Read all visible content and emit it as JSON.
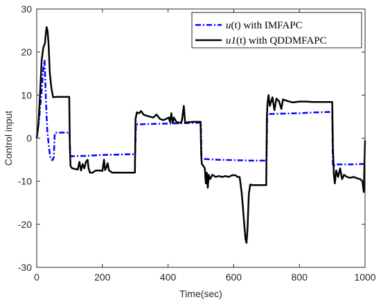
{
  "chart_data": {
    "type": "line",
    "title": "",
    "xlabel": "Time(sec)",
    "ylabel": "Control input",
    "xlim": [
      0,
      1000
    ],
    "ylim": [
      -30,
      30
    ],
    "xticks": [
      0,
      200,
      400,
      600,
      800,
      1000
    ],
    "yticks": [
      -30,
      -20,
      -10,
      0,
      10,
      20,
      30
    ],
    "grid": false,
    "legend_placement": "top-right",
    "series": [
      {
        "name": "u(t) with IMFAPC",
        "legend": {
          "fn": "u",
          "arg": "(t)",
          "suffix": " with IMFAPC"
        },
        "color": "#0000ff",
        "style": "dash-dot",
        "points": [
          [
            0,
            0
          ],
          [
            8,
            5
          ],
          [
            15,
            11
          ],
          [
            20,
            16
          ],
          [
            24,
            18
          ],
          [
            28,
            9
          ],
          [
            32,
            2
          ],
          [
            37,
            -2
          ],
          [
            42,
            -4.8
          ],
          [
            48,
            -5.1
          ],
          [
            52,
            -4.5
          ],
          [
            55,
            1.2
          ],
          [
            60,
            1.3
          ],
          [
            80,
            1.3
          ],
          [
            99,
            1.3
          ],
          [
            100,
            1.3
          ],
          [
            102,
            -4.2
          ],
          [
            150,
            -4.1
          ],
          [
            200,
            -3.9
          ],
          [
            250,
            -3.8
          ],
          [
            298,
            -3.7
          ],
          [
            300,
            -3.7
          ],
          [
            302,
            3.2
          ],
          [
            350,
            3.3
          ],
          [
            400,
            3.4
          ],
          [
            450,
            3.5
          ],
          [
            498,
            3.6
          ],
          [
            500,
            3.6
          ],
          [
            502,
            -4.8
          ],
          [
            550,
            -5.0
          ],
          [
            600,
            -5.1
          ],
          [
            650,
            -5.2
          ],
          [
            698,
            -5.2
          ],
          [
            700,
            -5.2
          ],
          [
            702,
            5.6
          ],
          [
            750,
            5.7
          ],
          [
            800,
            5.8
          ],
          [
            850,
            6.0
          ],
          [
            898,
            6.1
          ],
          [
            900,
            6.1
          ],
          [
            902,
            -6.5
          ],
          [
            910,
            -6.1
          ],
          [
            950,
            -6.1
          ],
          [
            997,
            -6.0
          ],
          [
            1000,
            -6.0
          ]
        ]
      },
      {
        "name": "u1(t) with QDDMFAPC",
        "legend": {
          "fn": "u1",
          "arg": "(t)",
          "suffix": " with QDDMFAPC"
        },
        "color": "#000000",
        "style": "solid",
        "points": [
          [
            0,
            0
          ],
          [
            5,
            3
          ],
          [
            10,
            10
          ],
          [
            15,
            18
          ],
          [
            20,
            21
          ],
          [
            25,
            22
          ],
          [
            28,
            24.5
          ],
          [
            30,
            25.8
          ],
          [
            33,
            25
          ],
          [
            36,
            22
          ],
          [
            40,
            15
          ],
          [
            45,
            11.5
          ],
          [
            50,
            9.5
          ],
          [
            60,
            9.6
          ],
          [
            70,
            9.6
          ],
          [
            80,
            9.6
          ],
          [
            90,
            9.6
          ],
          [
            99,
            9.6
          ],
          [
            101,
            -2
          ],
          [
            103,
            -6.5
          ],
          [
            108,
            -7.0
          ],
          [
            115,
            -7.1
          ],
          [
            125,
            -7.3
          ],
          [
            130,
            -5.5
          ],
          [
            135,
            -7.5
          ],
          [
            140,
            -6.0
          ],
          [
            145,
            -7.0
          ],
          [
            150,
            -5.5
          ],
          [
            155,
            -5.0
          ],
          [
            158,
            -7.0
          ],
          [
            162,
            -8.0
          ],
          [
            170,
            -8.0
          ],
          [
            180,
            -7.5
          ],
          [
            190,
            -7.5
          ],
          [
            200,
            -7.6
          ],
          [
            205,
            -5.0
          ],
          [
            208,
            -7.4
          ],
          [
            212,
            -6.8
          ],
          [
            216,
            -5.8
          ],
          [
            220,
            -7.5
          ],
          [
            230,
            -8.0
          ],
          [
            260,
            -8.0
          ],
          [
            280,
            -8.0
          ],
          [
            299,
            -8.0
          ],
          [
            301,
            4.5
          ],
          [
            305,
            6.0
          ],
          [
            312,
            5.8
          ],
          [
            318,
            6.3
          ],
          [
            325,
            5.5
          ],
          [
            335,
            5.2
          ],
          [
            345,
            5.0
          ],
          [
            355,
            4.8
          ],
          [
            365,
            5.5
          ],
          [
            375,
            4.5
          ],
          [
            385,
            4.2
          ],
          [
            395,
            4.5
          ],
          [
            402,
            4.8
          ],
          [
            406,
            3.8
          ],
          [
            410,
            5.8
          ],
          [
            414,
            3.5
          ],
          [
            418,
            4.8
          ],
          [
            425,
            3.8
          ],
          [
            432,
            3.6
          ],
          [
            438,
            3.6
          ],
          [
            442,
            4.0
          ],
          [
            448,
            7.5
          ],
          [
            452,
            3.5
          ],
          [
            460,
            3.7
          ],
          [
            475,
            3.8
          ],
          [
            490,
            3.8
          ],
          [
            499,
            3.8
          ],
          [
            501,
            -4.0
          ],
          [
            503,
            -6.0
          ],
          [
            508,
            -6.5
          ],
          [
            512,
            -7.0
          ],
          [
            515,
            -10.5
          ],
          [
            518,
            -8.0
          ],
          [
            521,
            -11.5
          ],
          [
            524,
            -8.5
          ],
          [
            528,
            -9.5
          ],
          [
            535,
            -8.5
          ],
          [
            545,
            -9.0
          ],
          [
            555,
            -8.8
          ],
          [
            565,
            -9.0
          ],
          [
            575,
            -8.8
          ],
          [
            585,
            -9.0
          ],
          [
            595,
            -8.6
          ],
          [
            605,
            -8.6
          ],
          [
            612,
            -9.0
          ],
          [
            618,
            -9.0
          ],
          [
            624,
            -12.5
          ],
          [
            628,
            -16
          ],
          [
            632,
            -20
          ],
          [
            636,
            -23.5
          ],
          [
            639,
            -24.3
          ],
          [
            642,
            -21
          ],
          [
            646,
            -13
          ],
          [
            650,
            -10.8
          ],
          [
            660,
            -10.9
          ],
          [
            675,
            -10.9
          ],
          [
            690,
            -10.9
          ],
          [
            699,
            -10.9
          ],
          [
            701,
            5.0
          ],
          [
            703,
            8.2
          ],
          [
            706,
            10.0
          ],
          [
            710,
            7.5
          ],
          [
            718,
            9.5
          ],
          [
            724,
            6.5
          ],
          [
            730,
            9.2
          ],
          [
            738,
            8.6
          ],
          [
            745,
            6.8
          ],
          [
            750,
            9.0
          ],
          [
            765,
            8.6
          ],
          [
            780,
            8.3
          ],
          [
            800,
            8.5
          ],
          [
            820,
            8.5
          ],
          [
            840,
            8.4
          ],
          [
            860,
            8.4
          ],
          [
            880,
            8.4
          ],
          [
            898,
            8.4
          ],
          [
            900,
            8.4
          ],
          [
            902,
            -2
          ],
          [
            905,
            -8.5
          ],
          [
            908,
            -10.5
          ],
          [
            912,
            -7.5
          ],
          [
            918,
            -9.0
          ],
          [
            924,
            -7.0
          ],
          [
            930,
            -9.5
          ],
          [
            936,
            -8.5
          ],
          [
            945,
            -9.0
          ],
          [
            955,
            -9.2
          ],
          [
            965,
            -9.0
          ],
          [
            975,
            -9.3
          ],
          [
            985,
            -9.5
          ],
          [
            992,
            -10
          ],
          [
            996,
            -12.5
          ],
          [
            998,
            -6.0
          ],
          [
            1000,
            -0.5
          ]
        ]
      }
    ]
  }
}
